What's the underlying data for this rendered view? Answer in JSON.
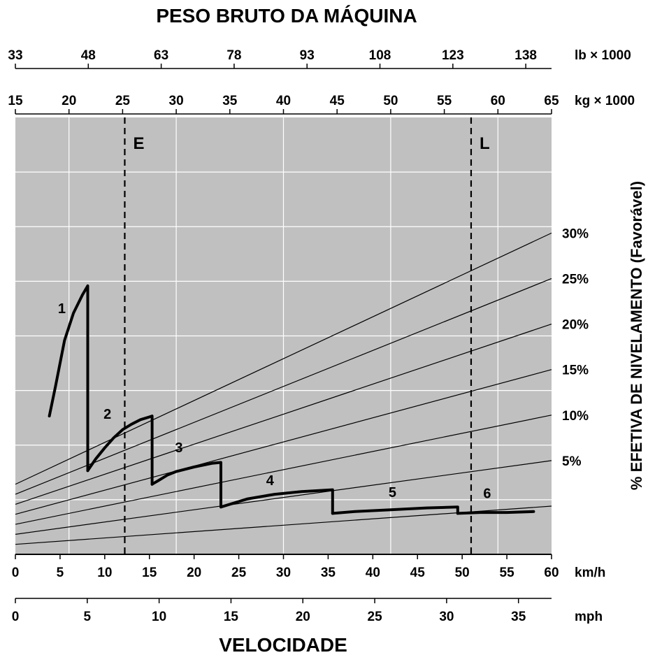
{
  "chart_data": {
    "type": "line",
    "title": "PESO BRUTO DA MÁQUINA",
    "xlabel": "VELOCIDADE",
    "ylabel": "% EFETIVA DE NIVELAMENTO (Favorável)",
    "axes": {
      "kmh": {
        "unit": "km/h",
        "range": [
          0,
          60
        ],
        "ticks": [
          "0",
          "5",
          "10",
          "15",
          "20",
          "25",
          "30",
          "35",
          "40",
          "45",
          "50",
          "55",
          "60"
        ]
      },
      "mph": {
        "unit": "mph",
        "range": [
          0,
          37.3
        ],
        "ticks": [
          "0",
          "5",
          "10",
          "15",
          "20",
          "25",
          "30",
          "35"
        ]
      },
      "kg": {
        "unit": "kg × 1000",
        "range": [
          15,
          65
        ],
        "ticks": [
          "15",
          "20",
          "25",
          "30",
          "35",
          "40",
          "45",
          "50",
          "55",
          "60",
          "65"
        ]
      },
      "lb": {
        "unit": "lb × 1000",
        "range": [
          33,
          143.3
        ],
        "ticks": [
          "33",
          "48",
          "63",
          "78",
          "93",
          "108",
          "123",
          "138"
        ]
      }
    },
    "grade_lines": [
      {
        "label": "",
        "percent": 0,
        "y_at_kg15": 1.1,
        "y_at_kg65": 5.3
      },
      {
        "label": "5%",
        "percent": 5,
        "y_at_kg15": 2.2,
        "y_at_kg65": 10.3
      },
      {
        "label": "10%",
        "percent": 10,
        "y_at_kg15": 3.3,
        "y_at_kg65": 15.3
      },
      {
        "label": "15%",
        "percent": 15,
        "y_at_kg15": 4.4,
        "y_at_kg65": 20.3
      },
      {
        "label": "20%",
        "percent": 20,
        "y_at_kg15": 5.5,
        "y_at_kg65": 25.3
      },
      {
        "label": "25%",
        "percent": 25,
        "y_at_kg15": 6.6,
        "y_at_kg65": 30.3
      },
      {
        "label": "30%",
        "percent": 30,
        "y_at_kg15": 7.7,
        "y_at_kg65": 35.3
      }
    ],
    "weight_markers": [
      {
        "label": "E",
        "kg_x1000": 25.2
      },
      {
        "label": "L",
        "kg_x1000": 57.5
      }
    ],
    "series": [
      {
        "name": "1",
        "label_at": [
          5.2,
          26.5
        ],
        "points": [
          [
            3.8,
            15.2
          ],
          [
            4.5,
            18.5
          ],
          [
            5.5,
            23.5
          ],
          [
            6.5,
            26.5
          ],
          [
            7.5,
            28.5
          ],
          [
            8.1,
            29.5
          ],
          [
            8.1,
            9.2
          ]
        ]
      },
      {
        "name": "2",
        "label_at": [
          10.3,
          14.9
        ],
        "points": [
          [
            8.1,
            9.2
          ],
          [
            9,
            10.5
          ],
          [
            10,
            11.7
          ],
          [
            11,
            12.8
          ],
          [
            12,
            13.7
          ],
          [
            13,
            14.3
          ],
          [
            14,
            14.8
          ],
          [
            15,
            15.1
          ],
          [
            15.3,
            15.2
          ],
          [
            15.3,
            7.7
          ]
        ]
      },
      {
        "name": "3",
        "label_at": [
          18.3,
          11.2
        ],
        "points": [
          [
            15.3,
            7.7
          ],
          [
            16,
            8.1
          ],
          [
            17,
            8.7
          ],
          [
            18,
            9.1
          ],
          [
            20,
            9.6
          ],
          [
            22,
            10
          ],
          [
            23,
            10.1
          ],
          [
            23,
            5.2
          ]
        ]
      },
      {
        "name": "4",
        "label_at": [
          28.5,
          7.6
        ],
        "points": [
          [
            23,
            5.2
          ],
          [
            26,
            6.1
          ],
          [
            29,
            6.6
          ],
          [
            32,
            6.9
          ],
          [
            35.5,
            7.1
          ],
          [
            35.5,
            4.5
          ]
        ]
      },
      {
        "name": "5",
        "label_at": [
          42.2,
          6.3
        ],
        "points": [
          [
            35.5,
            4.5
          ],
          [
            38,
            4.7
          ],
          [
            42,
            4.9
          ],
          [
            46,
            5.1
          ],
          [
            49.5,
            5.2
          ],
          [
            49.5,
            4.5
          ]
        ]
      },
      {
        "name": "6",
        "label_at": [
          52.8,
          6.2
        ],
        "points": [
          [
            49.5,
            4.5
          ],
          [
            52,
            4.6
          ],
          [
            55,
            4.6
          ],
          [
            58,
            4.7
          ]
        ]
      }
    ]
  }
}
